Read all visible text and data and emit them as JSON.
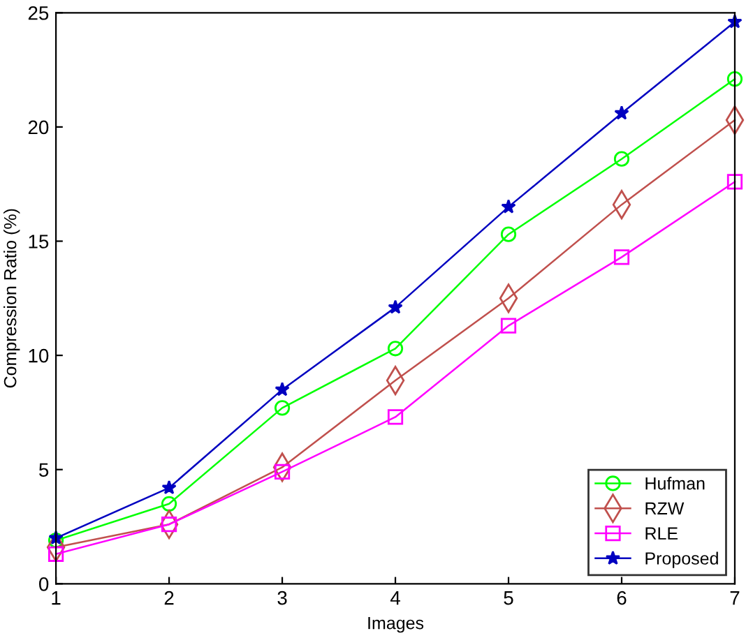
{
  "chart_data": {
    "type": "line",
    "xlabel": "Images",
    "ylabel": "Compression Ratio (%)",
    "x": [
      1,
      2,
      3,
      4,
      5,
      6,
      7
    ],
    "xlim": [
      1,
      7
    ],
    "xticks": [
      1,
      2,
      3,
      4,
      5,
      6,
      7
    ],
    "ylim": [
      0,
      25
    ],
    "yticks": [
      0,
      5,
      10,
      15,
      20,
      25
    ],
    "grid": false,
    "legend": "bottom right",
    "series": [
      {
        "name": "Hufman",
        "color": "#00ff00",
        "marker": "circle",
        "values": [
          1.9,
          3.5,
          7.7,
          10.3,
          15.3,
          18.6,
          22.1
        ]
      },
      {
        "name": "RZW",
        "color": "#c0504d",
        "marker": "diamond",
        "values": [
          1.6,
          2.6,
          5.1,
          8.9,
          12.5,
          16.6,
          20.3
        ]
      },
      {
        "name": "RLE",
        "color": "#ff00ff",
        "marker": "square",
        "values": [
          1.3,
          2.6,
          4.9,
          7.3,
          11.3,
          14.3,
          17.6
        ]
      },
      {
        "name": "Proposed",
        "color": "#0000c0",
        "marker": "star",
        "values": [
          2.0,
          4.2,
          8.5,
          12.1,
          16.5,
          20.6,
          24.6
        ]
      }
    ]
  }
}
